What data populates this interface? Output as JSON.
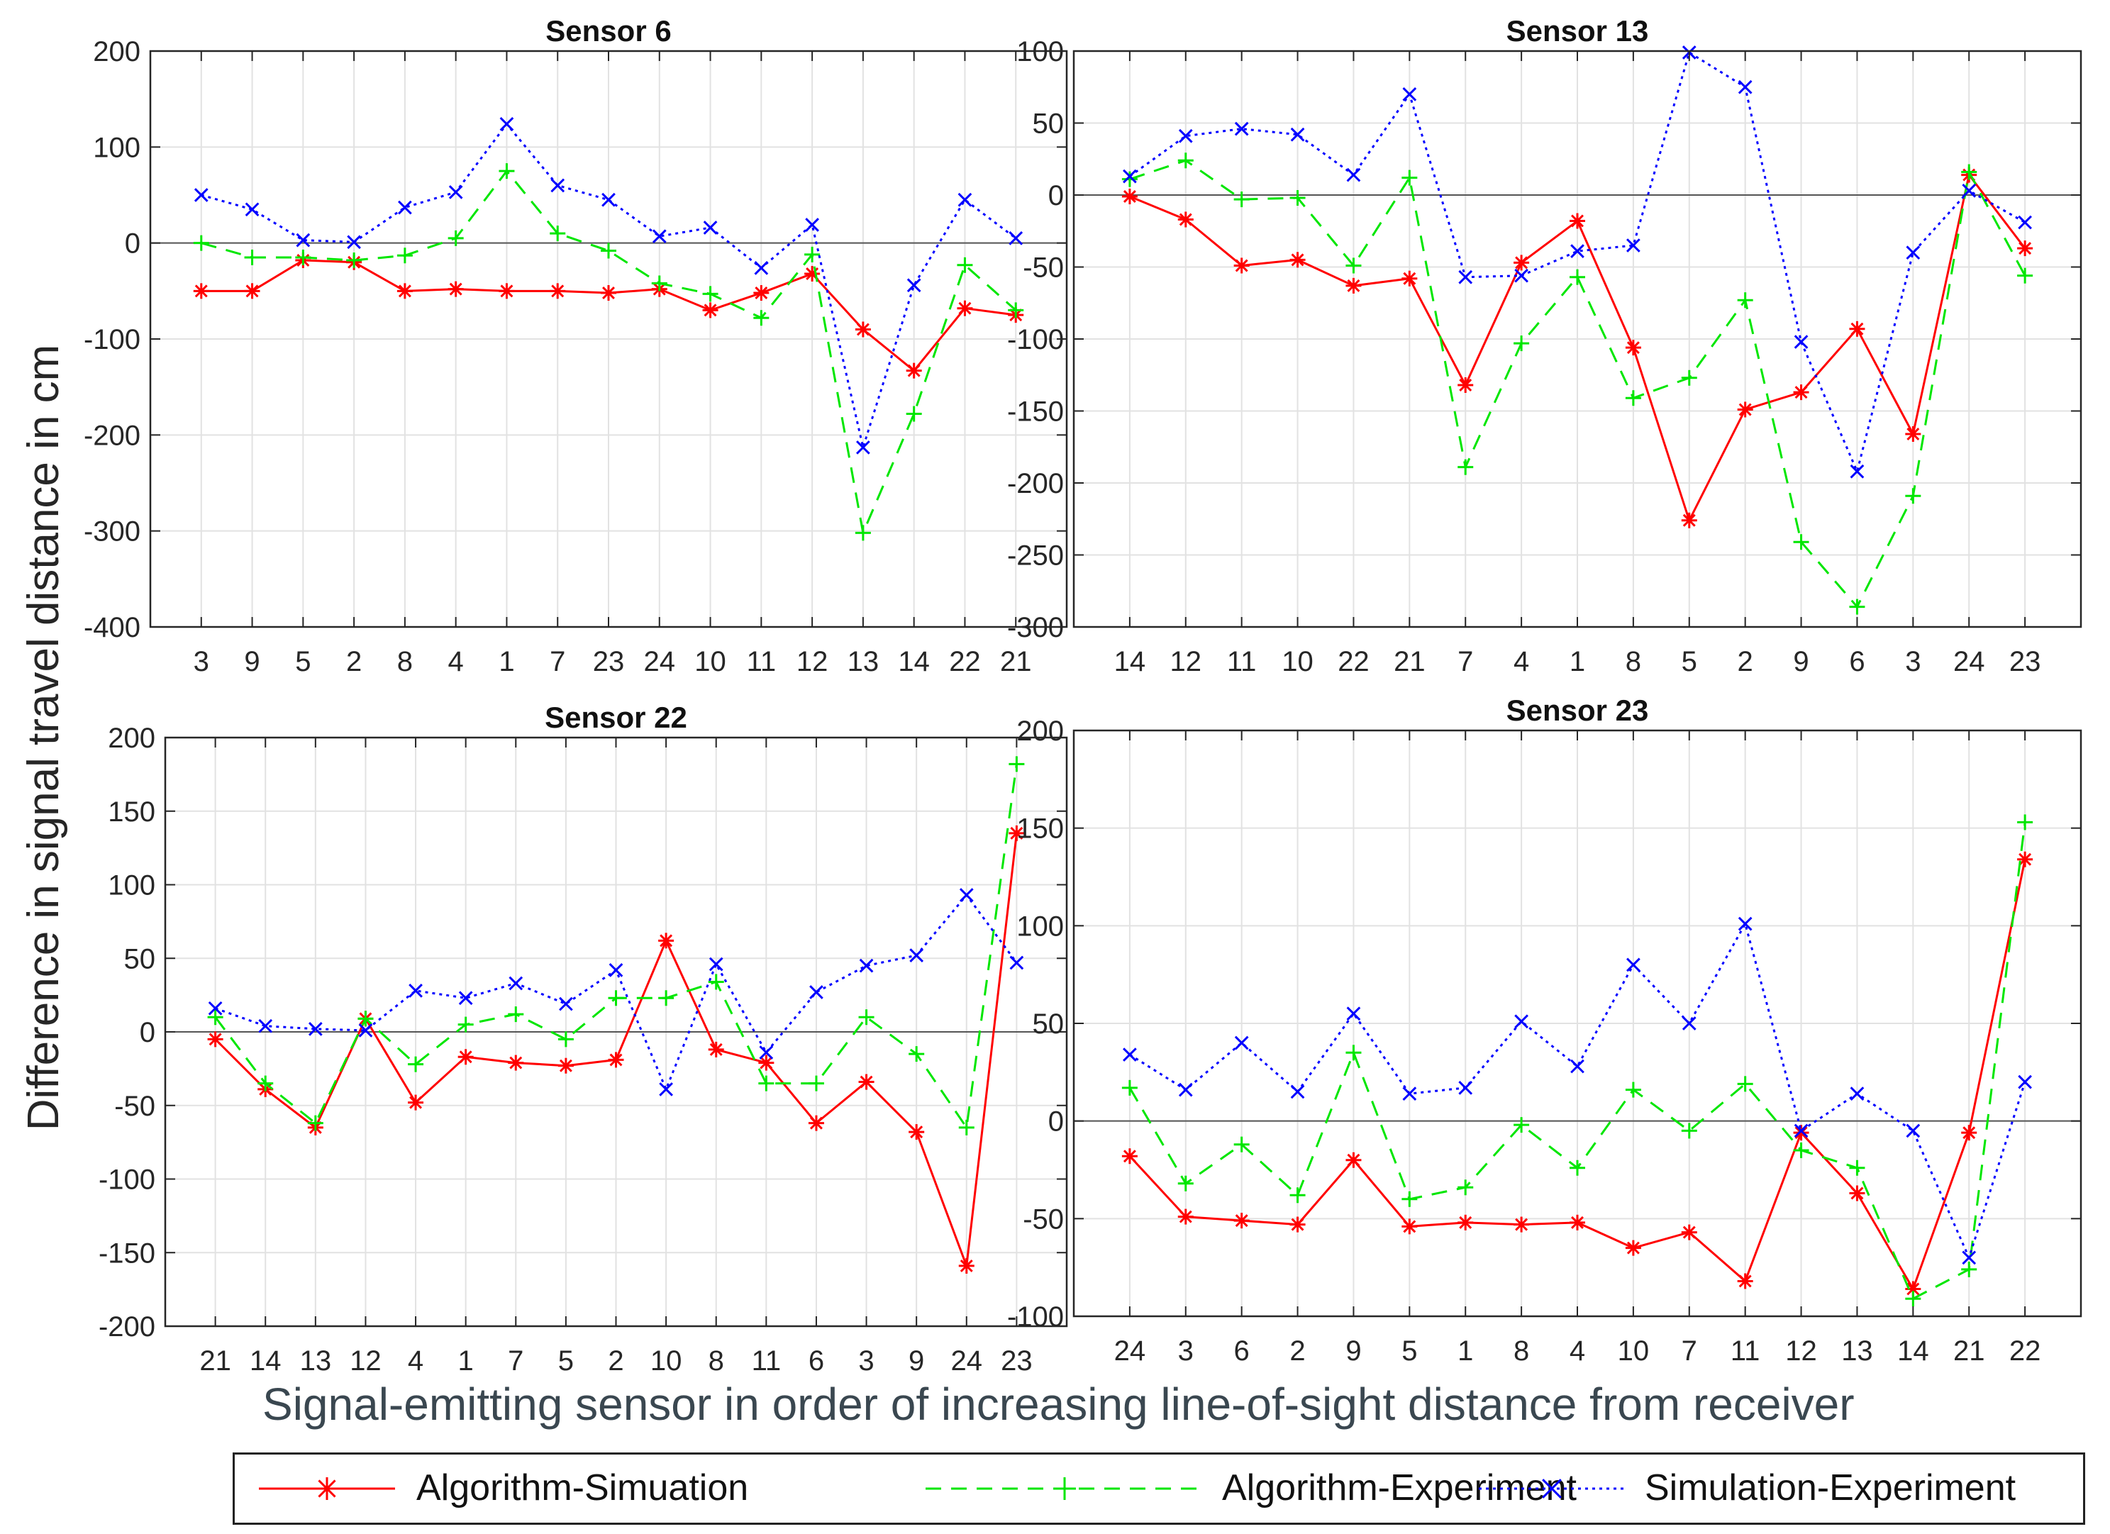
{
  "figure": {
    "ylabel": "Difference in signal travel distance in cm",
    "xlabel": "Signal-emitting sensor in order of increasing line-of-sight distance from receiver"
  },
  "legend": {
    "items": [
      {
        "label": "Algorithm-Simuation",
        "color": "#ff0000",
        "marker": "*",
        "linestyle": "solid"
      },
      {
        "label": "Algorithm-Experiment",
        "color": "#00e600",
        "marker": "+",
        "linestyle": "dashed"
      },
      {
        "label": "Simulation-Experiment",
        "color": "#0000ff",
        "marker": "x",
        "linestyle": "dotted"
      }
    ]
  },
  "chart_data": [
    {
      "type": "line",
      "title": "Sensor 6",
      "categories": [
        "3",
        "9",
        "5",
        "2",
        "8",
        "4",
        "1",
        "7",
        "23",
        "24",
        "10",
        "11",
        "12",
        "13",
        "14",
        "22",
        "21"
      ],
      "ylim": [
        -400,
        200
      ],
      "yticks": [
        -400,
        -300,
        -200,
        -100,
        0,
        100,
        200
      ],
      "grid": true,
      "series": [
        {
          "name": "Algorithm-Simuation",
          "values": [
            -50,
            -50,
            -18,
            -20,
            -50,
            -48,
            -50,
            -50,
            -52,
            -48,
            -70,
            -52,
            -32,
            -90,
            -133,
            -68,
            -75
          ]
        },
        {
          "name": "Algorithm-Experiment",
          "values": [
            0,
            -15,
            -15,
            -18,
            -13,
            5,
            75,
            10,
            -8,
            -42,
            -53,
            -78,
            -12,
            -302,
            -178,
            -23,
            -70
          ]
        },
        {
          "name": "Simulation-Experiment",
          "values": [
            50,
            35,
            3,
            1,
            37,
            53,
            124,
            60,
            45,
            7,
            16,
            -26,
            19,
            -213,
            -44,
            45,
            5
          ]
        }
      ]
    },
    {
      "type": "line",
      "title": "Sensor 13",
      "categories": [
        "14",
        "12",
        "11",
        "10",
        "22",
        "21",
        "7",
        "4",
        "1",
        "8",
        "5",
        "2",
        "9",
        "6",
        "3",
        "24",
        "23"
      ],
      "ylim": [
        -300,
        100
      ],
      "yticks": [
        -300,
        -250,
        -200,
        -150,
        -100,
        -50,
        0,
        50,
        100
      ],
      "grid": true,
      "series": [
        {
          "name": "Algorithm-Simuation",
          "values": [
            -1,
            -17,
            -49,
            -45,
            -63,
            -58,
            -132,
            -47,
            -18,
            -106,
            -226,
            -149,
            -137,
            -93,
            -166,
            14,
            -37
          ]
        },
        {
          "name": "Algorithm-Experiment",
          "values": [
            11,
            24,
            -3,
            -2,
            -49,
            12,
            -189,
            -103,
            -57,
            -141,
            -127,
            -73,
            -241,
            -286,
            -209,
            16,
            -56
          ]
        },
        {
          "name": "Simulation-Experiment",
          "values": [
            13,
            41,
            46,
            42,
            14,
            70,
            -57,
            -56,
            -39,
            -35,
            99,
            75,
            -102,
            -192,
            -40,
            3,
            -19
          ]
        }
      ]
    },
    {
      "type": "line",
      "title": "Sensor 22",
      "categories": [
        "21",
        "14",
        "13",
        "12",
        "4",
        "1",
        "7",
        "5",
        "2",
        "10",
        "8",
        "11",
        "6",
        "3",
        "9",
        "24",
        "23"
      ],
      "ylim": [
        -200,
        200
      ],
      "yticks": [
        -200,
        -150,
        -100,
        -50,
        0,
        50,
        100,
        150,
        200
      ],
      "grid": true,
      "series": [
        {
          "name": "Algorithm-Simuation",
          "values": [
            -5,
            -39,
            -65,
            9,
            -48,
            -17,
            -21,
            -23,
            -19,
            62,
            -12,
            -21,
            -62,
            -34,
            -68,
            -159,
            135
          ]
        },
        {
          "name": "Algorithm-Experiment",
          "values": [
            10,
            -35,
            -62,
            9,
            -22,
            5,
            12,
            -5,
            23,
            23,
            34,
            -35,
            -35,
            10,
            -15,
            -65,
            182
          ]
        },
        {
          "name": "Simulation-Experiment",
          "values": [
            16,
            4,
            2,
            1,
            28,
            23,
            33,
            19,
            42,
            -39,
            46,
            -14,
            27,
            45,
            52,
            93,
            47
          ]
        }
      ]
    },
    {
      "type": "line",
      "title": "Sensor 23",
      "categories": [
        "24",
        "3",
        "6",
        "2",
        "9",
        "5",
        "1",
        "8",
        "4",
        "10",
        "7",
        "11",
        "12",
        "13",
        "14",
        "21",
        "22"
      ],
      "ylim": [
        -100,
        200
      ],
      "yticks": [
        -100,
        -50,
        0,
        50,
        100,
        150,
        200
      ],
      "grid": true,
      "series": [
        {
          "name": "Algorithm-Simuation",
          "values": [
            -18,
            -49,
            -51,
            -53,
            -20,
            -54,
            -52,
            -53,
            -52,
            -65,
            -57,
            -82,
            -6,
            -37,
            -86,
            -6,
            134
          ]
        },
        {
          "name": "Algorithm-Experiment",
          "values": [
            17,
            -32,
            -12,
            -38,
            35,
            -40,
            -34,
            -2,
            -24,
            16,
            -5,
            19,
            -15,
            -24,
            -91,
            -76,
            153
          ]
        },
        {
          "name": "Simulation-Experiment",
          "values": [
            34,
            16,
            40,
            15,
            55,
            14,
            17,
            51,
            28,
            80,
            50,
            101,
            -5,
            14,
            -5,
            -70,
            20
          ]
        }
      ]
    }
  ]
}
